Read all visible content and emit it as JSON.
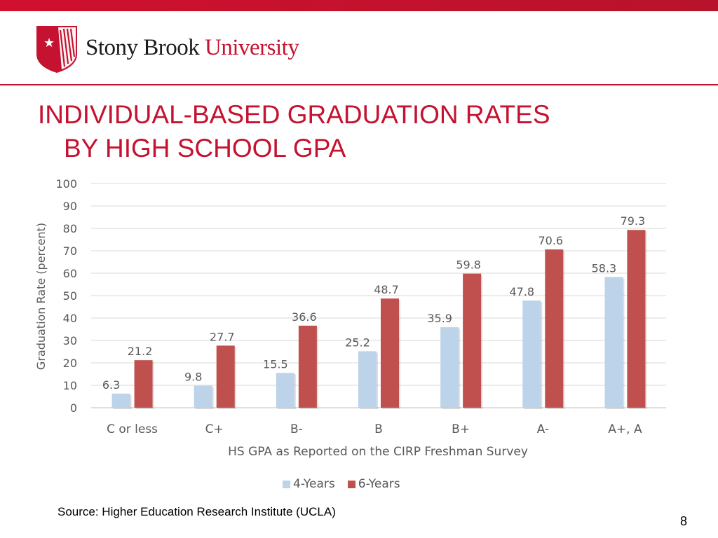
{
  "header": {
    "brand_part1": "Stony Brook",
    "brand_part2": "University"
  },
  "slide": {
    "title_line1": "INDIVIDUAL-BASED GRADUATION RATES",
    "title_line2": "BY HIGH SCHOOL GPA",
    "source": "Source: Higher Education Research Institute (UCLA)",
    "page_number": "8"
  },
  "colors": {
    "accent": "#c41230",
    "series_4yr": "#bcd3ea",
    "series_6yr": "#c0504d"
  },
  "chart_data": {
    "type": "bar",
    "title": "",
    "xlabel": "HS GPA as Reported on the CIRP Freshman Survey",
    "ylabel": "Graduation Rate (percent)",
    "ylim": [
      0,
      100
    ],
    "yticks": [
      "0",
      "10",
      "20",
      "30",
      "40",
      "50",
      "60",
      "70",
      "80",
      "90",
      "100"
    ],
    "categories": [
      "C or less",
      "C+",
      "B-",
      "B",
      "B+",
      "A-",
      "A+, A"
    ],
    "series": [
      {
        "name": "4-Years",
        "values": [
          6.3,
          9.8,
          15.5,
          25.2,
          35.9,
          47.8,
          58.3
        ]
      },
      {
        "name": "6-Years",
        "values": [
          21.2,
          27.7,
          36.6,
          48.7,
          59.8,
          70.6,
          79.3
        ]
      }
    ],
    "legend_position": "bottom"
  }
}
